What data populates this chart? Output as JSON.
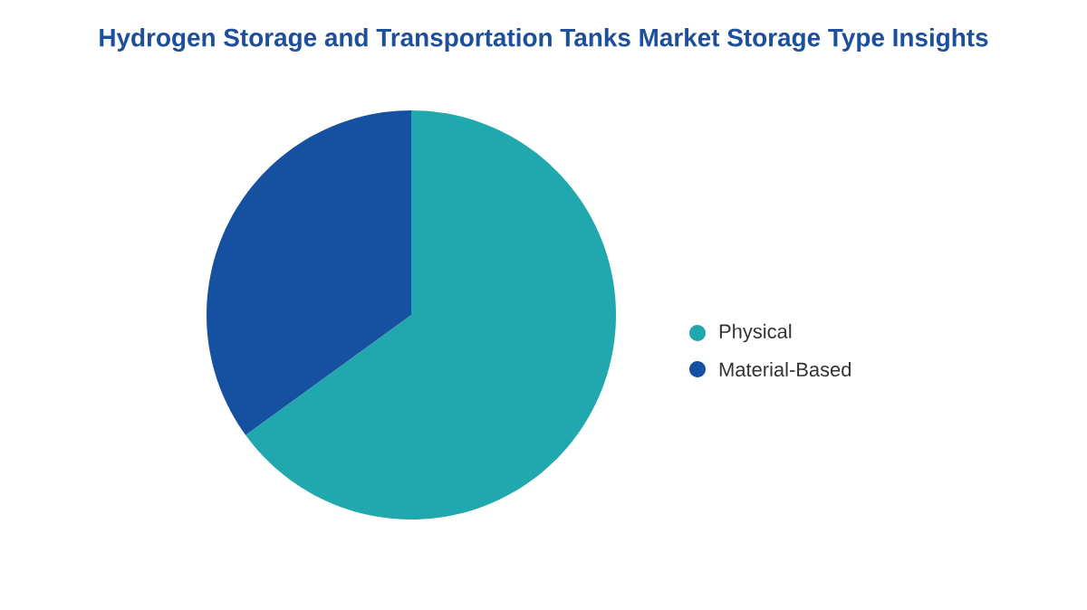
{
  "chart_data": {
    "type": "pie",
    "title": "Hydrogen Storage and Transportation Tanks Market Storage Type Insights",
    "categories": [
      "Physical",
      "Material-Based"
    ],
    "values": [
      65,
      35
    ],
    "colors": [
      "#21a8ae",
      "#1650a0"
    ],
    "legend": "right"
  }
}
